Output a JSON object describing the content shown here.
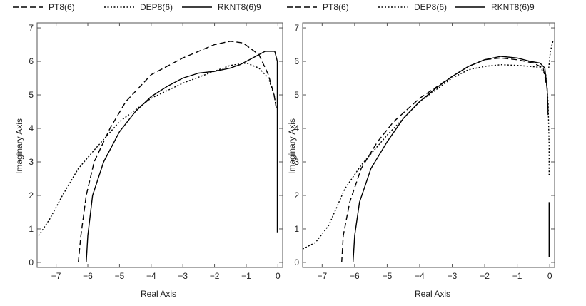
{
  "legend": [
    {
      "name": "PT8(6)",
      "dash": "8,4"
    },
    {
      "name": "DEP8(6)",
      "dash": "2,2.5"
    },
    {
      "name": "RKNT8(6)9",
      "dash": ""
    }
  ],
  "colors": {
    "line": "#000000",
    "frame": "#555555",
    "text": "#222222"
  },
  "chart_data": [
    {
      "type": "line",
      "title": "",
      "xlabel": "Real Axis",
      "ylabel": "Imaginary Axis",
      "xlim": [
        -7.6,
        0.15
      ],
      "ylim": [
        -0.15,
        7.15
      ],
      "xticks": [
        -7,
        -6,
        -5,
        -4,
        -3,
        -2,
        -1,
        0
      ],
      "yticks": [
        0,
        1,
        2,
        3,
        4,
        5,
        6,
        7
      ],
      "series": [
        {
          "name": "PT8(6)",
          "segments": [
            [
              [
                -6.3,
                0
              ],
              [
                -6.22,
                0.8
              ],
              [
                -6.05,
                2.0
              ],
              [
                -5.8,
                3.0
              ],
              [
                -5.3,
                4.0
              ],
              [
                -4.8,
                4.8
              ],
              [
                -4.0,
                5.6
              ],
              [
                -3.0,
                6.1
              ],
              [
                -2.0,
                6.5
              ],
              [
                -1.5,
                6.6
              ],
              [
                -1.1,
                6.55
              ],
              [
                -0.6,
                6.2
              ],
              [
                -0.3,
                5.6
              ],
              [
                -0.12,
                5.0
              ],
              [
                -0.05,
                4.6
              ]
            ]
          ]
        },
        {
          "name": "DEP8(6)",
          "segments": [
            [
              [
                -7.55,
                0.8
              ],
              [
                -7.2,
                1.3
              ],
              [
                -6.8,
                2.0
              ],
              [
                -6.3,
                2.8
              ],
              [
                -5.8,
                3.35
              ],
              [
                -5.0,
                4.2
              ],
              [
                -4.0,
                4.9
              ],
              [
                -3.0,
                5.35
              ],
              [
                -2.3,
                5.6
              ],
              [
                -1.5,
                5.88
              ],
              [
                -1.0,
                5.95
              ],
              [
                -0.6,
                5.8
              ],
              [
                -0.3,
                5.5
              ],
              [
                -0.12,
                5.0
              ],
              [
                -0.05,
                4.6
              ]
            ]
          ]
        },
        {
          "name": "RKNT8(6)9",
          "segments": [
            [
              [
                -6.05,
                0
              ],
              [
                -6.0,
                0.8
              ],
              [
                -5.85,
                2.0
              ],
              [
                -5.5,
                3.0
              ],
              [
                -5.0,
                3.9
              ],
              [
                -4.5,
                4.5
              ],
              [
                -4.0,
                4.95
              ],
              [
                -3.5,
                5.25
              ],
              [
                -3.0,
                5.5
              ],
              [
                -2.5,
                5.65
              ],
              [
                -2.0,
                5.7
              ],
              [
                -1.5,
                5.8
              ],
              [
                -1.2,
                5.9
              ],
              [
                -0.9,
                6.05
              ],
              [
                -0.6,
                6.2
              ],
              [
                -0.4,
                6.3
              ],
              [
                -0.1,
                6.3
              ],
              [
                -0.02,
                6.0
              ],
              [
                -0.02,
                0.9
              ]
            ]
          ]
        }
      ]
    },
    {
      "type": "line",
      "title": "",
      "xlabel": "Real Axis",
      "ylabel": "Imaginary Axis",
      "xlim": [
        -7.6,
        0.15
      ],
      "ylim": [
        -0.15,
        7.15
      ],
      "xticks": [
        -7,
        -6,
        -5,
        -4,
        -3,
        -2,
        -1,
        0
      ],
      "yticks": [
        0,
        1,
        2,
        3,
        4,
        5,
        6,
        7
      ],
      "series": [
        {
          "name": "PT8(6)",
          "segments": [
            [
              [
                -6.4,
                0
              ],
              [
                -6.35,
                0.8
              ],
              [
                -6.15,
                1.8
              ],
              [
                -5.8,
                2.8
              ],
              [
                -5.3,
                3.6
              ],
              [
                -4.8,
                4.2
              ],
              [
                -4.0,
                4.9
              ],
              [
                -3.0,
                5.55
              ],
              [
                -2.5,
                5.85
              ],
              [
                -2.0,
                6.05
              ],
              [
                -1.5,
                6.1
              ],
              [
                -1.0,
                6.05
              ],
              [
                -0.5,
                5.95
              ],
              [
                -0.2,
                5.8
              ],
              [
                -0.08,
                5.2
              ],
              [
                -0.05,
                4.4
              ]
            ]
          ]
        },
        {
          "name": "DEP8(6)",
          "segments": [
            [
              [
                -7.6,
                0.4
              ],
              [
                -7.2,
                0.6
              ],
              [
                -6.8,
                1.1
              ],
              [
                -6.3,
                2.2
              ],
              [
                -5.8,
                2.9
              ],
              [
                -5.0,
                3.8
              ],
              [
                -4.0,
                4.8
              ],
              [
                -3.0,
                5.5
              ],
              [
                -2.5,
                5.75
              ],
              [
                -2.0,
                5.85
              ],
              [
                -1.5,
                5.9
              ],
              [
                -1.0,
                5.88
              ],
              [
                -0.6,
                5.85
              ],
              [
                -0.3,
                5.82
              ],
              [
                -0.12,
                5.6
              ],
              [
                -0.05,
                4.8
              ],
              [
                -0.02,
                3.5
              ],
              [
                -0.02,
                2.6
              ]
            ],
            [
              [
                -0.03,
                5.8
              ],
              [
                0.02,
                6.3
              ],
              [
                0.1,
                6.6
              ]
            ]
          ]
        },
        {
          "name": "RKNT8(6)9",
          "segments": [
            [
              [
                -6.05,
                0
              ],
              [
                -6.0,
                0.8
              ],
              [
                -5.85,
                1.8
              ],
              [
                -5.5,
                2.8
              ],
              [
                -5.0,
                3.6
              ],
              [
                -4.5,
                4.3
              ],
              [
                -4.0,
                4.8
              ],
              [
                -3.5,
                5.2
              ],
              [
                -3.0,
                5.55
              ],
              [
                -2.5,
                5.85
              ],
              [
                -2.0,
                6.05
              ],
              [
                -1.5,
                6.15
              ],
              [
                -1.0,
                6.1
              ],
              [
                -0.6,
                6.0
              ],
              [
                -0.3,
                5.95
              ],
              [
                -0.15,
                5.8
              ],
              [
                -0.08,
                5.2
              ],
              [
                -0.05,
                4.5
              ]
            ],
            [
              [
                -0.02,
                1.8
              ],
              [
                -0.02,
                0.15
              ]
            ]
          ]
        }
      ]
    }
  ]
}
